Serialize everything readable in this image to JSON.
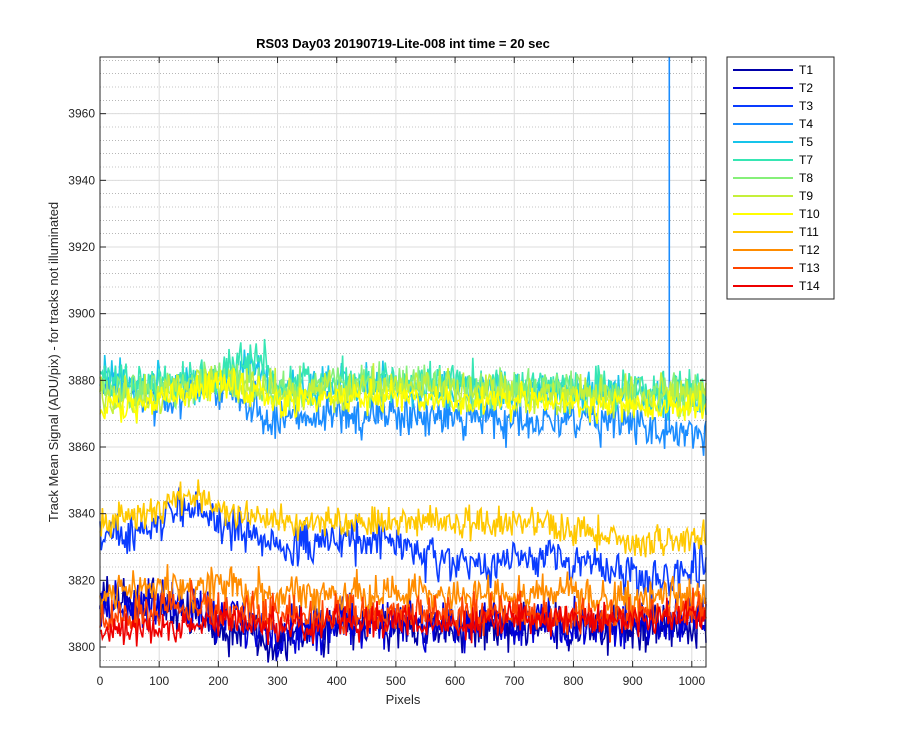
{
  "chart_data": {
    "type": "line",
    "title": "RS03 Day03 20190719-Lite-008 int time = 20 sec",
    "xlabel": "Pixels",
    "ylabel": "Track Mean Signal (ADU/pix) - for tracks not illuminated",
    "xlim": [
      0,
      1024
    ],
    "ylim": [
      3794,
      3977
    ],
    "xticks": [
      0,
      100,
      200,
      300,
      400,
      500,
      600,
      700,
      800,
      900,
      1000
    ],
    "yticks": [
      3800,
      3820,
      3840,
      3860,
      3880,
      3900,
      3920,
      3940,
      3960
    ],
    "grid": "major and minor",
    "legend_position": "outside-top-right",
    "series": [
      {
        "name": "T1",
        "color": "#0000a8",
        "anchors": [
          [
            0,
            3815
          ],
          [
            100,
            3812
          ],
          [
            200,
            3806
          ],
          [
            300,
            3802
          ],
          [
            400,
            3806
          ],
          [
            500,
            3807
          ],
          [
            600,
            3805
          ],
          [
            700,
            3806
          ],
          [
            800,
            3805
          ],
          [
            900,
            3806
          ],
          [
            1024,
            3807
          ]
        ],
        "noise": 6
      },
      {
        "name": "T2",
        "color": "#0000d8",
        "anchors": [
          [
            0,
            3812
          ],
          [
            100,
            3814
          ],
          [
            200,
            3809
          ],
          [
            300,
            3804
          ],
          [
            400,
            3807
          ],
          [
            500,
            3808
          ],
          [
            600,
            3806
          ],
          [
            700,
            3808
          ],
          [
            800,
            3806
          ],
          [
            900,
            3807
          ],
          [
            1024,
            3808
          ]
        ],
        "noise": 6
      },
      {
        "name": "T3",
        "color": "#0a3cff",
        "anchors": [
          [
            0,
            3834
          ],
          [
            60,
            3833
          ],
          [
            150,
            3843
          ],
          [
            220,
            3836
          ],
          [
            300,
            3830
          ],
          [
            400,
            3832
          ],
          [
            500,
            3832
          ],
          [
            550,
            3826
          ],
          [
            650,
            3824
          ],
          [
            750,
            3828
          ],
          [
            850,
            3824
          ],
          [
            950,
            3820
          ],
          [
            1024,
            3826
          ]
        ],
        "noise": 5
      },
      {
        "name": "T4",
        "color": "#1a8cff",
        "anchors": [
          [
            0,
            3878
          ],
          [
            100,
            3874
          ],
          [
            200,
            3879
          ],
          [
            260,
            3872
          ],
          [
            300,
            3868
          ],
          [
            400,
            3869
          ],
          [
            500,
            3870
          ],
          [
            600,
            3869
          ],
          [
            700,
            3868
          ],
          [
            800,
            3868
          ],
          [
            900,
            3867
          ],
          [
            1024,
            3864
          ]
        ],
        "noise": 5,
        "spike": {
          "x": 962,
          "y": 3977
        }
      },
      {
        "name": "T5",
        "color": "#17c4ea",
        "anchors": [
          [
            0,
            3880
          ],
          [
            100,
            3878
          ],
          [
            200,
            3880
          ],
          [
            260,
            3884
          ],
          [
            300,
            3877
          ],
          [
            400,
            3878
          ],
          [
            500,
            3878
          ],
          [
            600,
            3877
          ],
          [
            700,
            3876
          ],
          [
            800,
            3876
          ],
          [
            900,
            3875
          ],
          [
            1024,
            3875
          ]
        ],
        "noise": 5
      },
      {
        "name": "T7",
        "color": "#36e6b3",
        "anchors": [
          [
            0,
            3881
          ],
          [
            100,
            3878
          ],
          [
            200,
            3882
          ],
          [
            265,
            3888
          ],
          [
            300,
            3878
          ],
          [
            400,
            3879
          ],
          [
            500,
            3880
          ],
          [
            600,
            3879
          ],
          [
            700,
            3878
          ],
          [
            800,
            3878
          ],
          [
            900,
            3877
          ],
          [
            1024,
            3877
          ]
        ],
        "noise": 5
      },
      {
        "name": "T8",
        "color": "#86f079",
        "anchors": [
          [
            0,
            3876
          ],
          [
            100,
            3876
          ],
          [
            200,
            3880
          ],
          [
            300,
            3877
          ],
          [
            400,
            3878
          ],
          [
            500,
            3879
          ],
          [
            600,
            3878
          ],
          [
            700,
            3877
          ],
          [
            800,
            3877
          ],
          [
            900,
            3876
          ],
          [
            1024,
            3876
          ]
        ],
        "noise": 5
      },
      {
        "name": "T9",
        "color": "#c5f03a",
        "anchors": [
          [
            0,
            3874
          ],
          [
            100,
            3876
          ],
          [
            200,
            3880
          ],
          [
            300,
            3876
          ],
          [
            400,
            3877
          ],
          [
            500,
            3878
          ],
          [
            600,
            3877
          ],
          [
            700,
            3876
          ],
          [
            800,
            3876
          ],
          [
            900,
            3875
          ],
          [
            1024,
            3876
          ]
        ],
        "noise": 5
      },
      {
        "name": "T10",
        "color": "#ffff00",
        "anchors": [
          [
            0,
            3870
          ],
          [
            100,
            3874
          ],
          [
            200,
            3880
          ],
          [
            300,
            3874
          ],
          [
            400,
            3874
          ],
          [
            500,
            3875
          ],
          [
            600,
            3874
          ],
          [
            700,
            3874
          ],
          [
            800,
            3873
          ],
          [
            900,
            3872
          ],
          [
            1024,
            3873
          ]
        ],
        "noise": 4
      },
      {
        "name": "T11",
        "color": "#ffc800",
        "anchors": [
          [
            0,
            3837
          ],
          [
            80,
            3840
          ],
          [
            150,
            3846
          ],
          [
            220,
            3841
          ],
          [
            300,
            3838
          ],
          [
            400,
            3837
          ],
          [
            500,
            3838
          ],
          [
            600,
            3837
          ],
          [
            700,
            3838
          ],
          [
            800,
            3836
          ],
          [
            900,
            3831
          ],
          [
            1024,
            3833
          ]
        ],
        "noise": 4
      },
      {
        "name": "T12",
        "color": "#ff8c00",
        "anchors": [
          [
            0,
            3815
          ],
          [
            100,
            3818
          ],
          [
            200,
            3818
          ],
          [
            300,
            3816
          ],
          [
            400,
            3815
          ],
          [
            500,
            3816
          ],
          [
            600,
            3815
          ],
          [
            700,
            3816
          ],
          [
            800,
            3815
          ],
          [
            900,
            3813
          ],
          [
            1024,
            3815
          ]
        ],
        "noise": 5
      },
      {
        "name": "T13",
        "color": "#ff4400",
        "anchors": [
          [
            0,
            3808
          ],
          [
            100,
            3812
          ],
          [
            200,
            3812
          ],
          [
            300,
            3810
          ],
          [
            400,
            3810
          ],
          [
            500,
            3811
          ],
          [
            600,
            3810
          ],
          [
            700,
            3811
          ],
          [
            800,
            3810
          ],
          [
            900,
            3809
          ],
          [
            1024,
            3811
          ]
        ],
        "noise": 5
      },
      {
        "name": "T14",
        "color": "#ee0000",
        "anchors": [
          [
            0,
            3804
          ],
          [
            100,
            3806
          ],
          [
            200,
            3808
          ],
          [
            300,
            3806
          ],
          [
            400,
            3807
          ],
          [
            500,
            3808
          ],
          [
            600,
            3807
          ],
          [
            700,
            3808
          ],
          [
            800,
            3808
          ],
          [
            900,
            3808
          ],
          [
            1024,
            3809
          ]
        ],
        "noise": 4
      }
    ]
  }
}
